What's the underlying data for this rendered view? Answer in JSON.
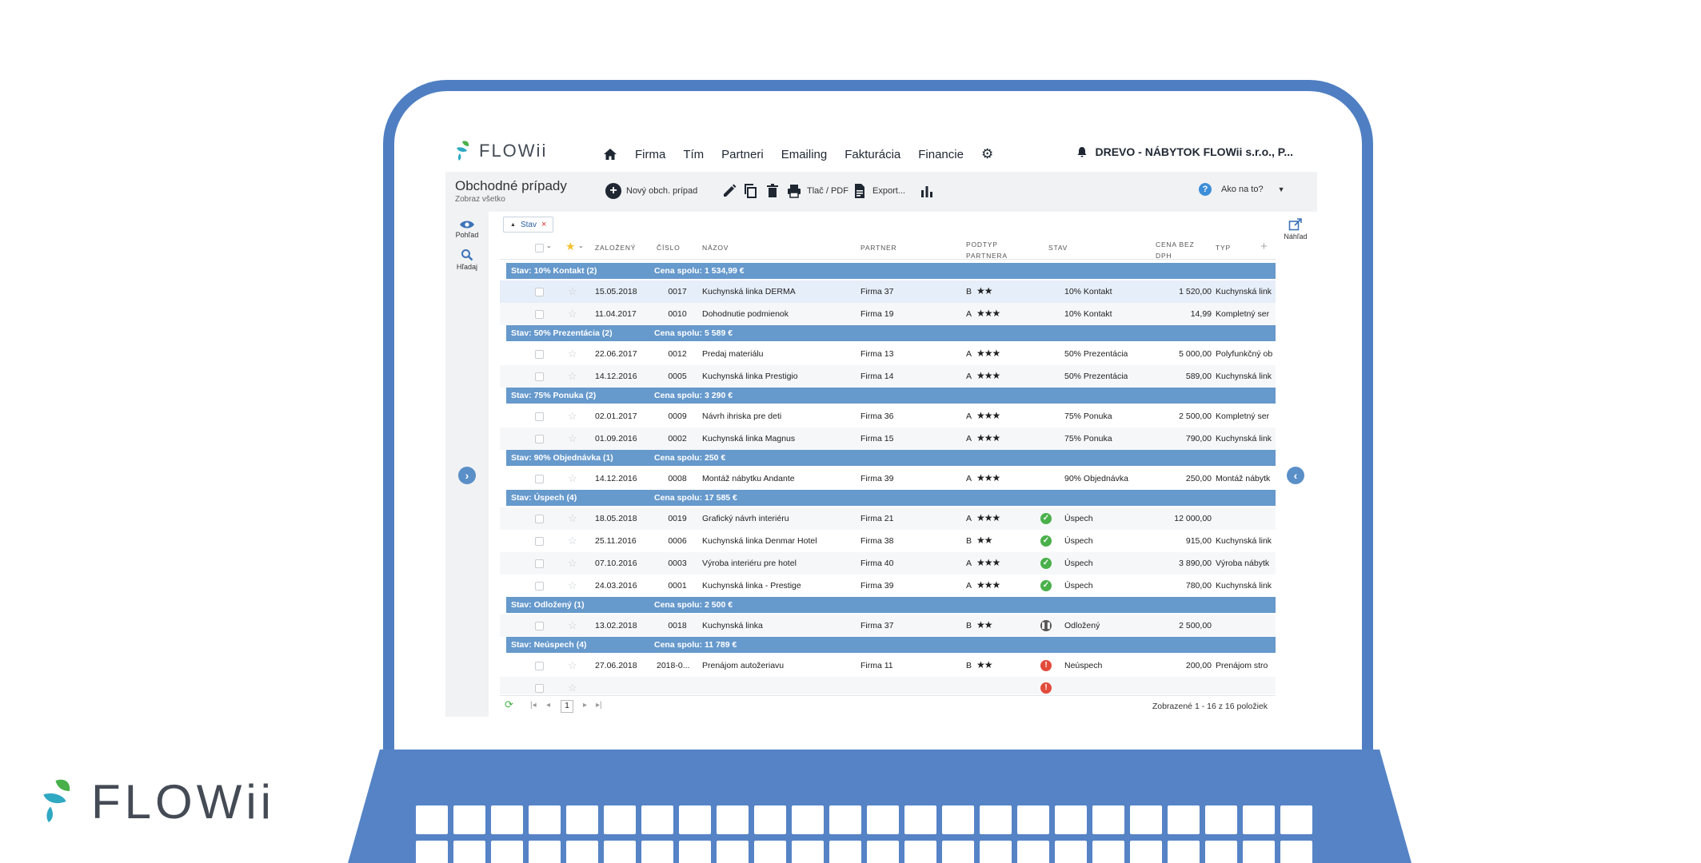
{
  "brand": {
    "name": "FLOWii",
    "colors": {
      "primary": "#4f7fc2",
      "group_row": "#6699cc",
      "green": "#49b04a",
      "teal": "#2fa8c2",
      "red": "#e24b3b"
    }
  },
  "nav": {
    "items": [
      "Firma",
      "Tím",
      "Partneri",
      "Emailing",
      "Fakturácia",
      "Financie"
    ],
    "company": "DREVO - NÁBYTOK FLOWii s.r.o., P..."
  },
  "toolbar": {
    "title": "Obchodné prípady",
    "subtitle": "Zobraz všetko",
    "new_label": "Nový obch. prípad",
    "print_label": "Tlač / PDF",
    "export_label": "Export...",
    "help_label": "Ako na to?"
  },
  "side": {
    "view_label": "Pohľad",
    "search_label": "Hľadaj",
    "preview_label": "Náhľad"
  },
  "filter": {
    "chip_label": "Stav"
  },
  "columns": {
    "created": "ZALOŽENÝ",
    "number": "ČÍSLO",
    "name": "NÁZOV",
    "partner": "PARTNER",
    "subtype_1": "PODTYP",
    "subtype_2": "PARTNERA",
    "status": "STAV",
    "price_1": "CENA BEZ",
    "price_2": "DPH",
    "type": "TYP"
  },
  "groups": [
    {
      "label": "Stav: 10% Kontakt (2)",
      "total": "Cena spolu: 1 534,99 €",
      "rows": [
        {
          "date": "15.05.2018",
          "num": "0017",
          "name": "Kuchynská linka DERMA",
          "partner": "Firma 37",
          "grade": "B",
          "stars": "★★",
          "status": "10% Kontakt",
          "icon": "",
          "price": "1 520,00",
          "type": "Kuchynská link"
        },
        {
          "date": "11.04.2017",
          "num": "0010",
          "name": "Dohodnutie podmienok",
          "partner": "Firma 19",
          "grade": "A",
          "stars": "★★★",
          "status": "10% Kontakt",
          "icon": "",
          "price": "14,99",
          "type": "Kompletný ser"
        }
      ]
    },
    {
      "label": "Stav: 50% Prezentácia (2)",
      "total": "Cena spolu: 5 589 €",
      "rows": [
        {
          "date": "22.06.2017",
          "num": "0012",
          "name": "Predaj materiálu",
          "partner": "Firma 13",
          "grade": "A",
          "stars": "★★★",
          "status": "50% Prezentácia",
          "icon": "",
          "price": "5 000,00",
          "type": "Polyfunkčný ob"
        },
        {
          "date": "14.12.2016",
          "num": "0005",
          "name": "Kuchynská linka Prestigio",
          "partner": "Firma 14",
          "grade": "A",
          "stars": "★★★",
          "status": "50% Prezentácia",
          "icon": "",
          "price": "589,00",
          "type": "Kuchynská link"
        }
      ]
    },
    {
      "label": "Stav: 75% Ponuka (2)",
      "total": "Cena spolu: 3 290 €",
      "rows": [
        {
          "date": "02.01.2017",
          "num": "0009",
          "name": "Návrh ihriska pre deti",
          "partner": "Firma 36",
          "grade": "A",
          "stars": "★★★",
          "status": "75% Ponuka",
          "icon": "",
          "price": "2 500,00",
          "type": "Kompletný ser"
        },
        {
          "date": "01.09.2016",
          "num": "0002",
          "name": "Kuchynská linka Magnus",
          "partner": "Firma 15",
          "grade": "A",
          "stars": "★★★",
          "status": "75% Ponuka",
          "icon": "",
          "price": "790,00",
          "type": "Kuchynská link"
        }
      ]
    },
    {
      "label": "Stav: 90% Objednávka (1)",
      "total": "Cena spolu: 250 €",
      "rows": [
        {
          "date": "14.12.2016",
          "num": "0008",
          "name": "Montáž nábytku Andante",
          "partner": "Firma 39",
          "grade": "A",
          "stars": "★★★",
          "status": "90% Objednávka",
          "icon": "",
          "price": "250,00",
          "type": "Montáž nábytk"
        }
      ]
    },
    {
      "label": "Stav: Úspech (4)",
      "total": "Cena spolu: 17 585 €",
      "rows": [
        {
          "date": "18.05.2018",
          "num": "0019",
          "name": "Grafický návrh interiéru",
          "partner": "Firma 21",
          "grade": "A",
          "stars": "★★★",
          "status": "Úspech",
          "icon": "ok",
          "price": "12 000,00",
          "type": ""
        },
        {
          "date": "25.11.2016",
          "num": "0006",
          "name": "Kuchynská linka Denmar Hotel",
          "partner": "Firma 38",
          "grade": "B",
          "stars": "★★",
          "status": "Úspech",
          "icon": "ok",
          "price": "915,00",
          "type": "Kuchynská link"
        },
        {
          "date": "07.10.2016",
          "num": "0003",
          "name": "Výroba interiéru pre hotel",
          "partner": "Firma 40",
          "grade": "A",
          "stars": "★★★",
          "status": "Úspech",
          "icon": "ok",
          "price": "3 890,00",
          "type": "Výroba nábytk"
        },
        {
          "date": "24.03.2016",
          "num": "0001",
          "name": "Kuchynská linka - Prestige",
          "partner": "Firma 39",
          "grade": "A",
          "stars": "★★★",
          "status": "Úspech",
          "icon": "ok",
          "price": "780,00",
          "type": "Kuchynská link"
        }
      ]
    },
    {
      "label": "Stav: Odložený (1)",
      "total": "Cena spolu: 2 500 €",
      "rows": [
        {
          "date": "13.02.2018",
          "num": "0018",
          "name": "Kuchynská linka",
          "partner": "Firma 37",
          "grade": "B",
          "stars": "★★",
          "status": "Odložený",
          "icon": "pause",
          "price": "2 500,00",
          "type": ""
        }
      ]
    },
    {
      "label": "Stav: Neúspech (4)",
      "total": "Cena spolu: 11 789 €",
      "rows": [
        {
          "date": "27.06.2018",
          "num": "2018-0...",
          "name": "Prenájom autožeriavu",
          "partner": "Firma 11",
          "grade": "B",
          "stars": "★★",
          "status": "Neúspech",
          "icon": "err",
          "price": "200,00",
          "type": "Prenájom stro"
        },
        {
          "date": "",
          "num": "",
          "name": "",
          "partner": "",
          "grade": "",
          "stars": "",
          "status": "",
          "icon": "err",
          "price": "",
          "type": ""
        }
      ]
    }
  ],
  "pagination": {
    "page": "1",
    "summary": "Zobrazené 1 - 16 z 16 položiek"
  }
}
